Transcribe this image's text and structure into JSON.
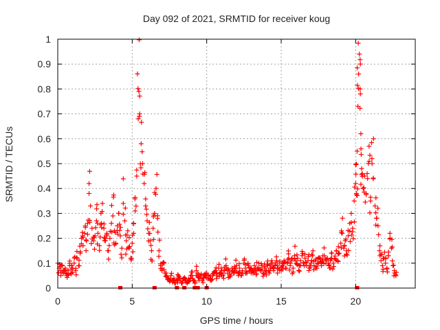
{
  "chart_data": {
    "type": "scatter",
    "title": "Day 092 of 2021, SRMTID for receiver koug",
    "xlabel": "GPS time / hours",
    "ylabel": "SRMTID / TECUs",
    "xlim": [
      0,
      24
    ],
    "ylim": [
      0,
      1
    ],
    "xticks": [
      0,
      5,
      10,
      15,
      20
    ],
    "yticks": [
      0,
      0.1,
      0.2,
      0.3,
      0.4,
      0.5,
      0.6,
      0.7,
      0.8,
      0.9,
      1
    ],
    "xtick_labels": [
      "0",
      "5",
      "10",
      "15",
      "20"
    ],
    "ytick_labels": [
      "0",
      "0.1",
      "0.2",
      "0.3",
      "0.4",
      "0.5",
      "0.6",
      "0.7",
      "0.8",
      "0.9",
      "1"
    ],
    "grid": true,
    "marker": "+",
    "series": [
      {
        "name": "SRMTID",
        "color": "#ff0000",
        "points": [
          [
            0.0,
            0.1
          ],
          [
            0.1,
            0.08
          ],
          [
            0.2,
            0.07
          ],
          [
            0.3,
            0.09
          ],
          [
            0.4,
            0.06
          ],
          [
            0.5,
            0.08
          ],
          [
            0.6,
            0.05
          ],
          [
            0.7,
            0.07
          ],
          [
            0.8,
            0.09
          ],
          [
            0.9,
            0.06
          ],
          [
            1.0,
            0.08
          ],
          [
            1.1,
            0.1
          ],
          [
            1.2,
            0.07
          ],
          [
            1.3,
            0.12
          ],
          [
            1.4,
            0.09
          ],
          [
            1.5,
            0.14
          ],
          [
            1.6,
            0.2
          ],
          [
            1.7,
            0.17
          ],
          [
            1.8,
            0.22
          ],
          [
            1.9,
            0.15
          ],
          [
            2.0,
            0.26
          ],
          [
            2.1,
            0.38
          ],
          [
            2.2,
            0.33
          ],
          [
            2.3,
            0.24
          ],
          [
            2.4,
            0.19
          ],
          [
            2.5,
            0.21
          ],
          [
            2.6,
            0.27
          ],
          [
            2.7,
            0.22
          ],
          [
            2.8,
            0.17
          ],
          [
            2.9,
            0.3
          ],
          [
            3.0,
            0.34
          ],
          [
            3.1,
            0.24
          ],
          [
            3.2,
            0.19
          ],
          [
            3.3,
            0.22
          ],
          [
            3.4,
            0.15
          ],
          [
            3.5,
            0.2
          ],
          [
            3.6,
            0.26
          ],
          [
            3.7,
            0.29
          ],
          [
            3.8,
            0.23
          ],
          [
            3.9,
            0.18
          ],
          [
            4.0,
            0.25
          ],
          [
            4.1,
            0.3
          ],
          [
            4.2,
            0.21
          ],
          [
            4.3,
            0.16
          ],
          [
            4.4,
            0.34
          ],
          [
            4.5,
            0.27
          ],
          [
            4.6,
            0.19
          ],
          [
            4.7,
            0.23
          ],
          [
            4.8,
            0.16
          ],
          [
            4.9,
            0.12
          ],
          [
            5.0,
            0.18
          ],
          [
            5.1,
            0.22
          ],
          [
            5.2,
            0.31
          ],
          [
            5.3,
            0.45
          ],
          [
            5.4,
            0.68
          ],
          [
            5.45,
            0.79
          ],
          [
            5.5,
            0.7
          ],
          [
            5.6,
            0.58
          ],
          [
            5.7,
            0.5
          ],
          [
            5.8,
            0.42
          ],
          [
            5.9,
            0.33
          ],
          [
            6.0,
            0.27
          ],
          [
            6.1,
            0.22
          ],
          [
            6.2,
            0.19
          ],
          [
            6.3,
            0.15
          ],
          [
            6.4,
            0.24
          ],
          [
            6.5,
            0.3
          ],
          [
            6.6,
            0.4
          ],
          [
            6.7,
            0.28
          ],
          [
            6.8,
            0.15
          ],
          [
            6.9,
            0.09
          ],
          [
            7.0,
            0.08
          ],
          [
            7.1,
            0.1
          ],
          [
            7.2,
            0.06
          ],
          [
            7.3,
            0.05
          ],
          [
            7.4,
            0.04
          ],
          [
            7.5,
            0.03
          ],
          [
            7.6,
            0.05
          ],
          [
            7.7,
            0.03
          ],
          [
            7.8,
            0.04
          ],
          [
            7.9,
            0.02
          ],
          [
            8.0,
            0.03
          ],
          [
            8.1,
            0.05
          ],
          [
            8.2,
            0.04
          ],
          [
            8.3,
            0.02
          ],
          [
            8.4,
            0.03
          ],
          [
            8.5,
            0.04
          ],
          [
            8.6,
            0.03
          ],
          [
            8.7,
            0.02
          ],
          [
            8.8,
            0.03
          ],
          [
            8.9,
            0.04
          ],
          [
            9.0,
            0.05
          ],
          [
            9.1,
            0.03
          ],
          [
            9.2,
            0.02
          ],
          [
            9.3,
            0.07
          ],
          [
            9.4,
            0.06
          ],
          [
            9.5,
            0.04
          ],
          [
            9.6,
            0.05
          ],
          [
            9.7,
            0.03
          ],
          [
            9.8,
            0.04
          ],
          [
            9.9,
            0.05
          ],
          [
            10.0,
            0.06
          ],
          [
            10.1,
            0.05
          ],
          [
            10.2,
            0.04
          ],
          [
            10.3,
            0.03
          ],
          [
            10.4,
            0.05
          ],
          [
            10.5,
            0.06
          ],
          [
            10.6,
            0.07
          ],
          [
            10.7,
            0.05
          ],
          [
            10.8,
            0.08
          ],
          [
            10.9,
            0.06
          ],
          [
            11.0,
            0.07
          ],
          [
            11.1,
            0.05
          ],
          [
            11.2,
            0.07
          ],
          [
            11.3,
            0.09
          ],
          [
            11.4,
            0.06
          ],
          [
            11.5,
            0.07
          ],
          [
            11.6,
            0.05
          ],
          [
            11.7,
            0.08
          ],
          [
            11.8,
            0.06
          ],
          [
            11.9,
            0.07
          ],
          [
            12.0,
            0.09
          ],
          [
            12.1,
            0.06
          ],
          [
            12.2,
            0.08
          ],
          [
            12.3,
            0.05
          ],
          [
            12.4,
            0.07
          ],
          [
            12.5,
            0.1
          ],
          [
            12.6,
            0.08
          ],
          [
            12.7,
            0.06
          ],
          [
            12.8,
            0.09
          ],
          [
            12.9,
            0.07
          ],
          [
            13.0,
            0.08
          ],
          [
            13.1,
            0.06
          ],
          [
            13.2,
            0.09
          ],
          [
            13.3,
            0.07
          ],
          [
            13.4,
            0.08
          ],
          [
            13.5,
            0.1
          ],
          [
            13.6,
            0.07
          ],
          [
            13.7,
            0.09
          ],
          [
            13.8,
            0.06
          ],
          [
            13.9,
            0.08
          ],
          [
            14.0,
            0.07
          ],
          [
            14.1,
            0.09
          ],
          [
            14.2,
            0.06
          ],
          [
            14.3,
            0.08
          ],
          [
            14.4,
            0.1
          ],
          [
            14.5,
            0.07
          ],
          [
            14.6,
            0.09
          ],
          [
            14.7,
            0.11
          ],
          [
            14.8,
            0.08
          ],
          [
            14.9,
            0.1
          ],
          [
            15.0,
            0.07
          ],
          [
            15.1,
            0.09
          ],
          [
            15.2,
            0.11
          ],
          [
            15.3,
            0.08
          ],
          [
            15.4,
            0.1
          ],
          [
            15.5,
            0.12
          ],
          [
            15.6,
            0.09
          ],
          [
            15.7,
            0.11
          ],
          [
            15.8,
            0.08
          ],
          [
            15.9,
            0.13
          ],
          [
            16.0,
            0.1
          ],
          [
            16.1,
            0.12
          ],
          [
            16.2,
            0.09
          ],
          [
            16.3,
            0.11
          ],
          [
            16.4,
            0.13
          ],
          [
            16.5,
            0.1
          ],
          [
            16.6,
            0.12
          ],
          [
            16.7,
            0.09
          ],
          [
            16.8,
            0.11
          ],
          [
            16.9,
            0.08
          ],
          [
            17.0,
            0.1
          ],
          [
            17.1,
            0.13
          ],
          [
            17.2,
            0.09
          ],
          [
            17.3,
            0.11
          ],
          [
            17.4,
            0.08
          ],
          [
            17.5,
            0.1
          ],
          [
            17.6,
            0.12
          ],
          [
            17.7,
            0.09
          ],
          [
            17.8,
            0.11
          ],
          [
            17.9,
            0.13
          ],
          [
            18.0,
            0.1
          ],
          [
            18.1,
            0.12
          ],
          [
            18.2,
            0.09
          ],
          [
            18.3,
            0.11
          ],
          [
            18.4,
            0.14
          ],
          [
            18.5,
            0.1
          ],
          [
            18.6,
            0.12
          ],
          [
            18.7,
            0.15
          ],
          [
            18.8,
            0.11
          ],
          [
            18.9,
            0.14
          ],
          [
            19.0,
            0.18
          ],
          [
            19.1,
            0.22
          ],
          [
            19.2,
            0.16
          ],
          [
            19.3,
            0.19
          ],
          [
            19.4,
            0.15
          ],
          [
            19.5,
            0.21
          ],
          [
            19.6,
            0.26
          ],
          [
            19.7,
            0.3
          ],
          [
            19.8,
            0.24
          ],
          [
            19.9,
            0.35
          ],
          [
            20.0,
            0.42
          ],
          [
            20.05,
            0.38
          ],
          [
            20.1,
            0.55
          ],
          [
            20.15,
            0.73
          ],
          [
            20.2,
            0.86
          ],
          [
            20.25,
            0.94
          ],
          [
            20.3,
            0.8
          ],
          [
            20.35,
            0.62
          ],
          [
            20.4,
            0.48
          ],
          [
            20.5,
            0.4
          ],
          [
            20.6,
            0.45
          ],
          [
            20.7,
            0.38
          ],
          [
            20.8,
            0.44
          ],
          [
            20.9,
            0.57
          ],
          [
            21.0,
            0.35
          ],
          [
            21.1,
            0.5
          ],
          [
            21.2,
            0.6
          ],
          [
            21.3,
            0.33
          ],
          [
            21.4,
            0.28
          ],
          [
            21.5,
            0.25
          ],
          [
            21.6,
            0.15
          ],
          [
            21.7,
            0.11
          ],
          [
            21.8,
            0.09
          ],
          [
            21.9,
            0.12
          ],
          [
            22.0,
            0.1
          ],
          [
            22.1,
            0.08
          ],
          [
            22.2,
            0.13
          ],
          [
            22.3,
            0.22
          ],
          [
            22.4,
            0.16
          ],
          [
            22.5,
            0.09
          ],
          [
            22.6,
            0.07
          ],
          [
            22.7,
            0.05
          ]
        ]
      }
    ],
    "edge_markers_x": [
      4.2,
      6.5,
      8.0,
      8.5,
      9.2,
      9.4,
      10.0,
      20.1
    ]
  }
}
